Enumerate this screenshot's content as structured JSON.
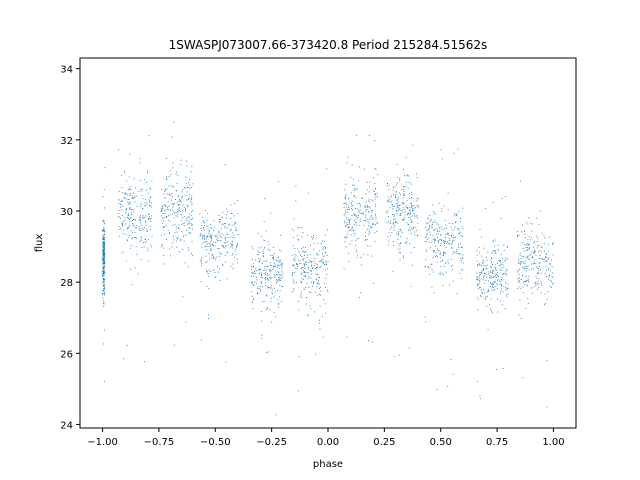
{
  "chart_data": {
    "type": "scatter",
    "title": "1SWASPJ073007.66-373420.8 Period 215284.51562s",
    "xlabel": "phase",
    "ylabel": "flux",
    "xlim": [
      -1.1,
      1.1
    ],
    "ylim": [
      23.9,
      34.3
    ],
    "x_ticks": [
      -1.0,
      -0.75,
      -0.5,
      -0.25,
      0.0,
      0.25,
      0.5,
      0.75,
      1.0
    ],
    "x_tick_labels": [
      "−1.00",
      "−0.75",
      "−0.50",
      "−0.25",
      "0.00",
      "0.25",
      "0.50",
      "0.75",
      "1.00"
    ],
    "y_ticks": [
      24,
      26,
      28,
      30,
      32,
      34
    ],
    "y_tick_labels": [
      "24",
      "26",
      "28",
      "30",
      "32",
      "34"
    ],
    "grid": false,
    "legend": "none",
    "marker_color": "#1f77b4",
    "series": [
      {
        "phase_groups": [
          {
            "x_range": [
              -1.0,
              -0.99
            ],
            "center_flux": 28.7,
            "spread": 0.5
          },
          {
            "x_range": [
              -0.93,
              -0.78
            ],
            "center_flux": 29.8,
            "spread": 0.55
          },
          {
            "x_range": [
              -0.74,
              -0.6
            ],
            "center_flux": 30.0,
            "spread": 0.6
          },
          {
            "x_range": [
              -0.57,
              -0.4
            ],
            "center_flux": 29.1,
            "spread": 0.5
          },
          {
            "x_range": [
              -0.34,
              -0.2
            ],
            "center_flux": 28.2,
            "spread": 0.45
          },
          {
            "x_range": [
              -0.16,
              0.0
            ],
            "center_flux": 28.4,
            "spread": 0.55
          },
          {
            "x_range": [
              0.07,
              0.22
            ],
            "center_flux": 29.8,
            "spread": 0.55
          },
          {
            "x_range": [
              0.26,
              0.4
            ],
            "center_flux": 30.0,
            "spread": 0.6
          },
          {
            "x_range": [
              0.43,
              0.6
            ],
            "center_flux": 29.1,
            "spread": 0.5
          },
          {
            "x_range": [
              0.66,
              0.8
            ],
            "center_flux": 28.2,
            "spread": 0.45
          },
          {
            "x_range": [
              0.84,
              1.0
            ],
            "center_flux": 28.5,
            "spread": 0.55
          }
        ]
      }
    ]
  }
}
